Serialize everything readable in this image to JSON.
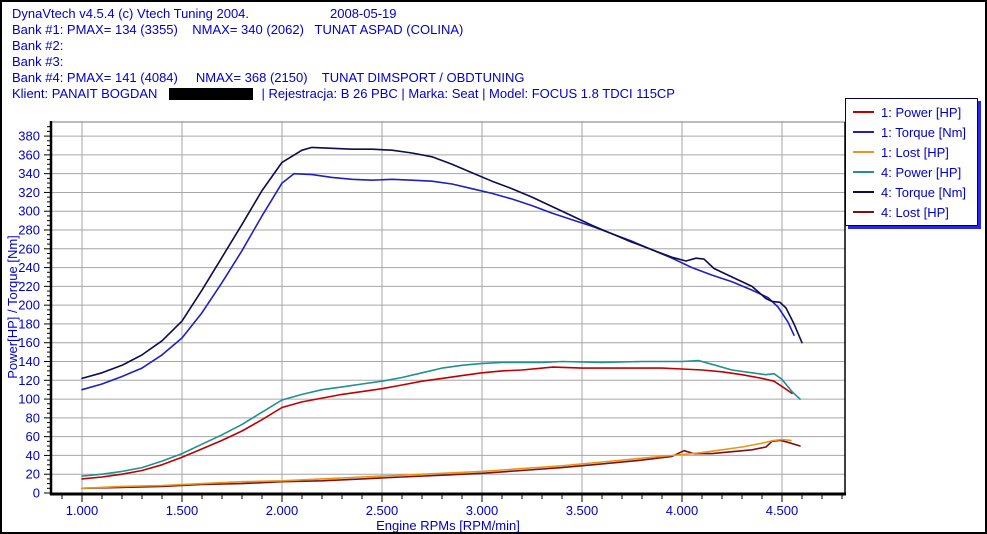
{
  "header": {
    "title": "DynaVtech v4.5.4 (c) Vtech Tuning 2004.",
    "date": "2008-05-19",
    "bank1": "Bank #1: PMAX= 134 (3355)    NMAX= 340 (2062)   TUNAT ASPAD (COLINA)",
    "bank2": "Bank #2:",
    "bank3": "Bank #3:",
    "bank4": "Bank #4: PMAX= 141 (4084)     NMAX= 368 (2150)    TUNAT DIMSPORT / OBDTUNING",
    "client_prefix": "Klient: PANAIT BOGDAN",
    "client_suffix": "| Rejestracja: B 26 PBC | Marka: Seat | Model: FOCUS 1.8 TDCI 115CP"
  },
  "colors": {
    "header_text": "#0000cc",
    "grid": "#a6a6a6",
    "axis": "#000000",
    "tick_label": "#0000cc",
    "legend_shadow": "#2626ec",
    "redaction": "#000000"
  },
  "chart_data": {
    "type": "line",
    "title": "",
    "xlabel": "Engine RPMs [RPM/min]",
    "ylabel": "Power[HP] / Torque [Nm]",
    "xlim": [
      850,
      4815
    ],
    "ylim": [
      0,
      395
    ],
    "grid": true,
    "legend_position": "top-right",
    "x_minor_step": 100,
    "y_minor_step": 5,
    "x_ticks": [
      {
        "v": 1000,
        "label": "1.000"
      },
      {
        "v": 1500,
        "label": "1.500"
      },
      {
        "v": 2000,
        "label": "2.000"
      },
      {
        "v": 2500,
        "label": "2.500"
      },
      {
        "v": 3000,
        "label": "3.000"
      },
      {
        "v": 3500,
        "label": "3.500"
      },
      {
        "v": 4000,
        "label": "4.000"
      },
      {
        "v": 4500,
        "label": "4.500"
      }
    ],
    "y_ticks": [
      {
        "v": 0,
        "label": "0"
      },
      {
        "v": 20,
        "label": "20"
      },
      {
        "v": 40,
        "label": "40"
      },
      {
        "v": 60,
        "label": "60"
      },
      {
        "v": 80,
        "label": "80"
      },
      {
        "v": 100,
        "label": "100"
      },
      {
        "v": 120,
        "label": "120"
      },
      {
        "v": 140,
        "label": "140"
      },
      {
        "v": 160,
        "label": "160"
      },
      {
        "v": 180,
        "label": "180"
      },
      {
        "v": 200,
        "label": "200"
      },
      {
        "v": 220,
        "label": "220"
      },
      {
        "v": 240,
        "label": "240"
      },
      {
        "v": 260,
        "label": "260"
      },
      {
        "v": 280,
        "label": "280"
      },
      {
        "v": 300,
        "label": "300"
      },
      {
        "v": 320,
        "label": "320"
      },
      {
        "v": 340,
        "label": "340"
      },
      {
        "v": 360,
        "label": "360"
      },
      {
        "v": 380,
        "label": "380"
      }
    ],
    "series": [
      {
        "name": "1: Power [HP]",
        "color": "#c00000",
        "points": [
          [
            1000,
            15
          ],
          [
            1100,
            17
          ],
          [
            1200,
            20
          ],
          [
            1300,
            24
          ],
          [
            1400,
            30
          ],
          [
            1500,
            38
          ],
          [
            1600,
            47
          ],
          [
            1700,
            56
          ],
          [
            1800,
            66
          ],
          [
            1900,
            78
          ],
          [
            2000,
            91
          ],
          [
            2100,
            97
          ],
          [
            2200,
            101
          ],
          [
            2300,
            105
          ],
          [
            2400,
            108
          ],
          [
            2500,
            111
          ],
          [
            2600,
            115
          ],
          [
            2700,
            119
          ],
          [
            2800,
            122
          ],
          [
            2900,
            125
          ],
          [
            3000,
            128
          ],
          [
            3100,
            130
          ],
          [
            3200,
            131
          ],
          [
            3355,
            134
          ],
          [
            3500,
            133
          ],
          [
            3700,
            133
          ],
          [
            3900,
            133
          ],
          [
            4000,
            132
          ],
          [
            4100,
            131
          ],
          [
            4200,
            129
          ],
          [
            4300,
            126
          ],
          [
            4400,
            122
          ],
          [
            4460,
            119
          ],
          [
            4510,
            112
          ],
          [
            4550,
            106
          ]
        ]
      },
      {
        "name": "1: Torque [Nm]",
        "color": "#2020c0",
        "points": [
          [
            1000,
            110
          ],
          [
            1100,
            116
          ],
          [
            1200,
            124
          ],
          [
            1300,
            133
          ],
          [
            1400,
            147
          ],
          [
            1500,
            165
          ],
          [
            1600,
            192
          ],
          [
            1700,
            224
          ],
          [
            1800,
            258
          ],
          [
            1900,
            295
          ],
          [
            2000,
            330
          ],
          [
            2060,
            340
          ],
          [
            2150,
            339
          ],
          [
            2250,
            336
          ],
          [
            2350,
            334
          ],
          [
            2450,
            333
          ],
          [
            2550,
            334
          ],
          [
            2650,
            333
          ],
          [
            2750,
            332
          ],
          [
            2850,
            329
          ],
          [
            2950,
            324
          ],
          [
            3050,
            319
          ],
          [
            3150,
            313
          ],
          [
            3250,
            306
          ],
          [
            3350,
            298
          ],
          [
            3450,
            291
          ],
          [
            3550,
            284
          ],
          [
            3650,
            276
          ],
          [
            3750,
            268
          ],
          [
            3850,
            259
          ],
          [
            3950,
            250
          ],
          [
            4050,
            240
          ],
          [
            4150,
            232
          ],
          [
            4250,
            225
          ],
          [
            4350,
            216
          ],
          [
            4430,
            208
          ],
          [
            4480,
            198
          ],
          [
            4530,
            182
          ],
          [
            4560,
            168
          ]
        ]
      },
      {
        "name": "1: Lost [HP]",
        "color": "#e8951a",
        "points": [
          [
            1000,
            5
          ],
          [
            1200,
            7
          ],
          [
            1400,
            8
          ],
          [
            1600,
            10
          ],
          [
            1800,
            12
          ],
          [
            2000,
            13
          ],
          [
            2200,
            15
          ],
          [
            2400,
            17
          ],
          [
            2600,
            19
          ],
          [
            2800,
            21
          ],
          [
            3000,
            23
          ],
          [
            3200,
            26
          ],
          [
            3400,
            29
          ],
          [
            3600,
            33
          ],
          [
            3800,
            37
          ],
          [
            4000,
            41
          ],
          [
            4100,
            43
          ],
          [
            4200,
            46
          ],
          [
            4300,
            49
          ],
          [
            4400,
            53
          ],
          [
            4460,
            56
          ],
          [
            4500,
            57
          ],
          [
            4545,
            56
          ]
        ]
      },
      {
        "name": "4: Power [HP]",
        "color": "#209090",
        "points": [
          [
            1000,
            18
          ],
          [
            1100,
            20
          ],
          [
            1200,
            23
          ],
          [
            1300,
            27
          ],
          [
            1400,
            34
          ],
          [
            1500,
            42
          ],
          [
            1600,
            52
          ],
          [
            1700,
            62
          ],
          [
            1800,
            73
          ],
          [
            1900,
            86
          ],
          [
            2000,
            99
          ],
          [
            2100,
            105
          ],
          [
            2200,
            110
          ],
          [
            2300,
            113
          ],
          [
            2400,
            116
          ],
          [
            2500,
            119
          ],
          [
            2600,
            123
          ],
          [
            2700,
            128
          ],
          [
            2800,
            133
          ],
          [
            2900,
            136
          ],
          [
            3000,
            138
          ],
          [
            3100,
            139
          ],
          [
            3300,
            139
          ],
          [
            3400,
            140
          ],
          [
            3600,
            139
          ],
          [
            3800,
            140
          ],
          [
            3900,
            140
          ],
          [
            4000,
            140
          ],
          [
            4084,
            141
          ],
          [
            4150,
            137
          ],
          [
            4250,
            131
          ],
          [
            4350,
            128
          ],
          [
            4420,
            126
          ],
          [
            4460,
            127
          ],
          [
            4500,
            121
          ],
          [
            4550,
            108
          ],
          [
            4590,
            100
          ]
        ]
      },
      {
        "name": "4: Torque [Nm]",
        "color": "#0c0c4e",
        "points": [
          [
            1000,
            122
          ],
          [
            1100,
            128
          ],
          [
            1200,
            136
          ],
          [
            1300,
            147
          ],
          [
            1400,
            162
          ],
          [
            1500,
            183
          ],
          [
            1600,
            216
          ],
          [
            1700,
            251
          ],
          [
            1800,
            286
          ],
          [
            1900,
            322
          ],
          [
            2000,
            352
          ],
          [
            2100,
            365
          ],
          [
            2150,
            368
          ],
          [
            2250,
            367
          ],
          [
            2350,
            366
          ],
          [
            2450,
            366
          ],
          [
            2550,
            365
          ],
          [
            2650,
            362
          ],
          [
            2750,
            358
          ],
          [
            2850,
            350
          ],
          [
            2950,
            341
          ],
          [
            3050,
            332
          ],
          [
            3150,
            324
          ],
          [
            3250,
            315
          ],
          [
            3350,
            305
          ],
          [
            3450,
            295
          ],
          [
            3550,
            285
          ],
          [
            3650,
            276
          ],
          [
            3750,
            267
          ],
          [
            3850,
            259
          ],
          [
            3950,
            251
          ],
          [
            4020,
            247
          ],
          [
            4070,
            250
          ],
          [
            4110,
            249
          ],
          [
            4160,
            239
          ],
          [
            4250,
            230
          ],
          [
            4350,
            220
          ],
          [
            4420,
            207
          ],
          [
            4450,
            204
          ],
          [
            4490,
            203
          ],
          [
            4520,
            197
          ],
          [
            4560,
            180
          ],
          [
            4600,
            160
          ]
        ]
      },
      {
        "name": "4: Lost [HP]",
        "color": "#801010",
        "points": [
          [
            1000,
            5
          ],
          [
            1200,
            6
          ],
          [
            1400,
            7
          ],
          [
            1600,
            9
          ],
          [
            1800,
            10
          ],
          [
            2000,
            12
          ],
          [
            2200,
            13
          ],
          [
            2400,
            15
          ],
          [
            2600,
            17
          ],
          [
            2800,
            19
          ],
          [
            3000,
            21
          ],
          [
            3200,
            24
          ],
          [
            3400,
            27
          ],
          [
            3600,
            31
          ],
          [
            3800,
            35
          ],
          [
            3950,
            39
          ],
          [
            4010,
            45
          ],
          [
            4060,
            42
          ],
          [
            4150,
            42
          ],
          [
            4250,
            44
          ],
          [
            4350,
            46
          ],
          [
            4420,
            49
          ],
          [
            4450,
            55
          ],
          [
            4490,
            56
          ],
          [
            4530,
            54
          ],
          [
            4590,
            50
          ]
        ]
      }
    ]
  }
}
